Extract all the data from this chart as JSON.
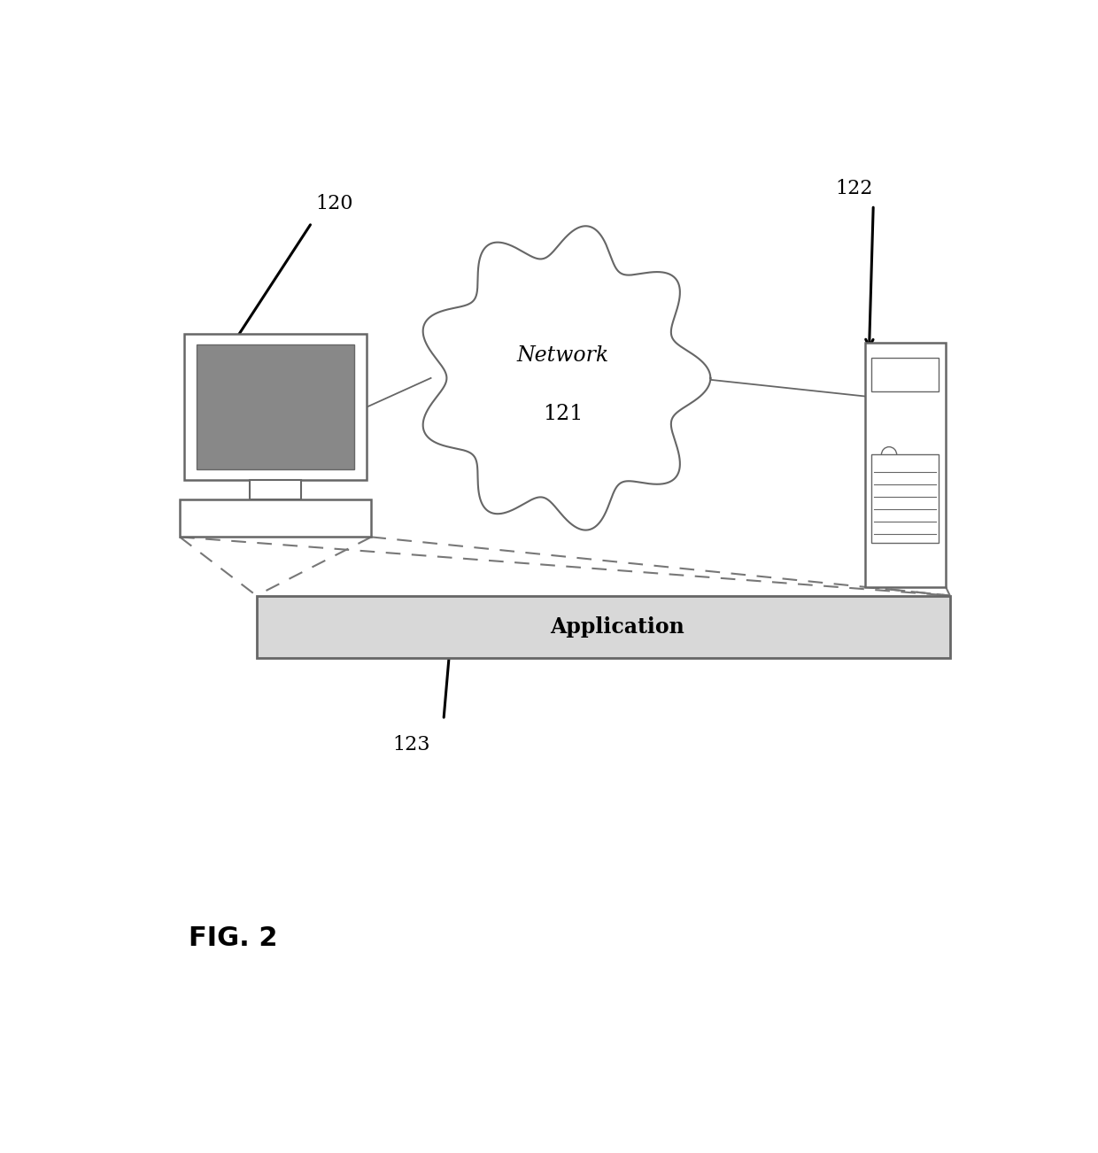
{
  "bg_color": "#ffffff",
  "fig_label": "FIG. 2",
  "network_label": "Network",
  "network_num": "121",
  "computer_label": "120",
  "server_label": "122",
  "app_label": "Application",
  "app_num": "123",
  "line_color": "#666666",
  "dashed_color": "#777777",
  "text_color": "#000000",
  "label_fontsize": 16,
  "title_fontsize": 22,
  "screen_color": "#888888",
  "monitor_color": "#ffffff"
}
